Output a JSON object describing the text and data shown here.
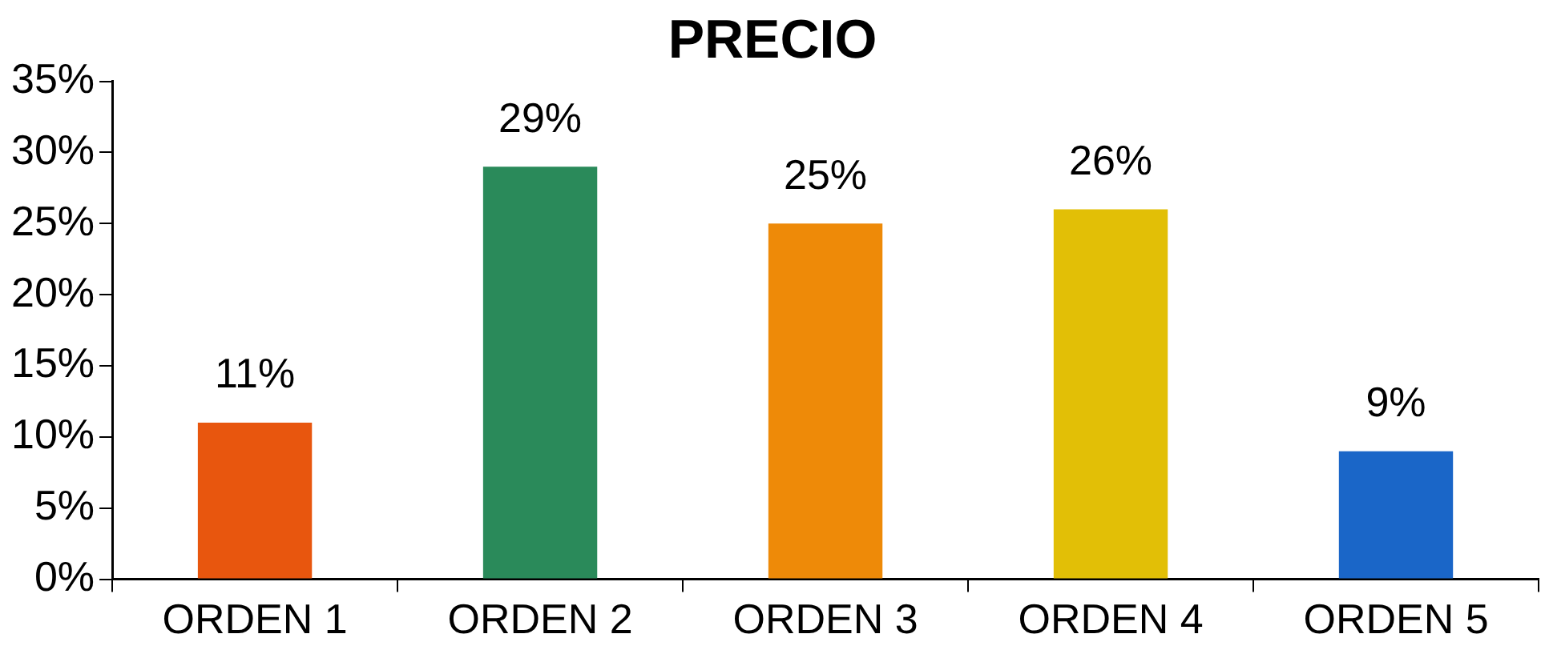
{
  "chart_data": {
    "type": "bar",
    "title": "PRECIO",
    "categories": [
      "ORDEN 1",
      "ORDEN 2",
      "ORDEN 3",
      "ORDEN 4",
      "ORDEN 5"
    ],
    "values": [
      11,
      29,
      25,
      26,
      9
    ],
    "colors": [
      "#e8560e",
      "#2a8a5a",
      "#ee8a08",
      "#e2bf06",
      "#1a66c8"
    ],
    "value_labels": [
      "11%",
      "29%",
      "25%",
      "26%",
      "9%"
    ],
    "ylim": [
      0,
      35
    ],
    "yticks": [
      {
        "value": 0,
        "label": "0%"
      },
      {
        "value": 5,
        "label": "5%"
      },
      {
        "value": 10,
        "label": "10%"
      },
      {
        "value": 15,
        "label": "15%"
      },
      {
        "value": 20,
        "label": "20%"
      },
      {
        "value": 25,
        "label": "25%"
      },
      {
        "value": 30,
        "label": "30%"
      },
      {
        "value": 35,
        "label": "35%"
      }
    ]
  }
}
